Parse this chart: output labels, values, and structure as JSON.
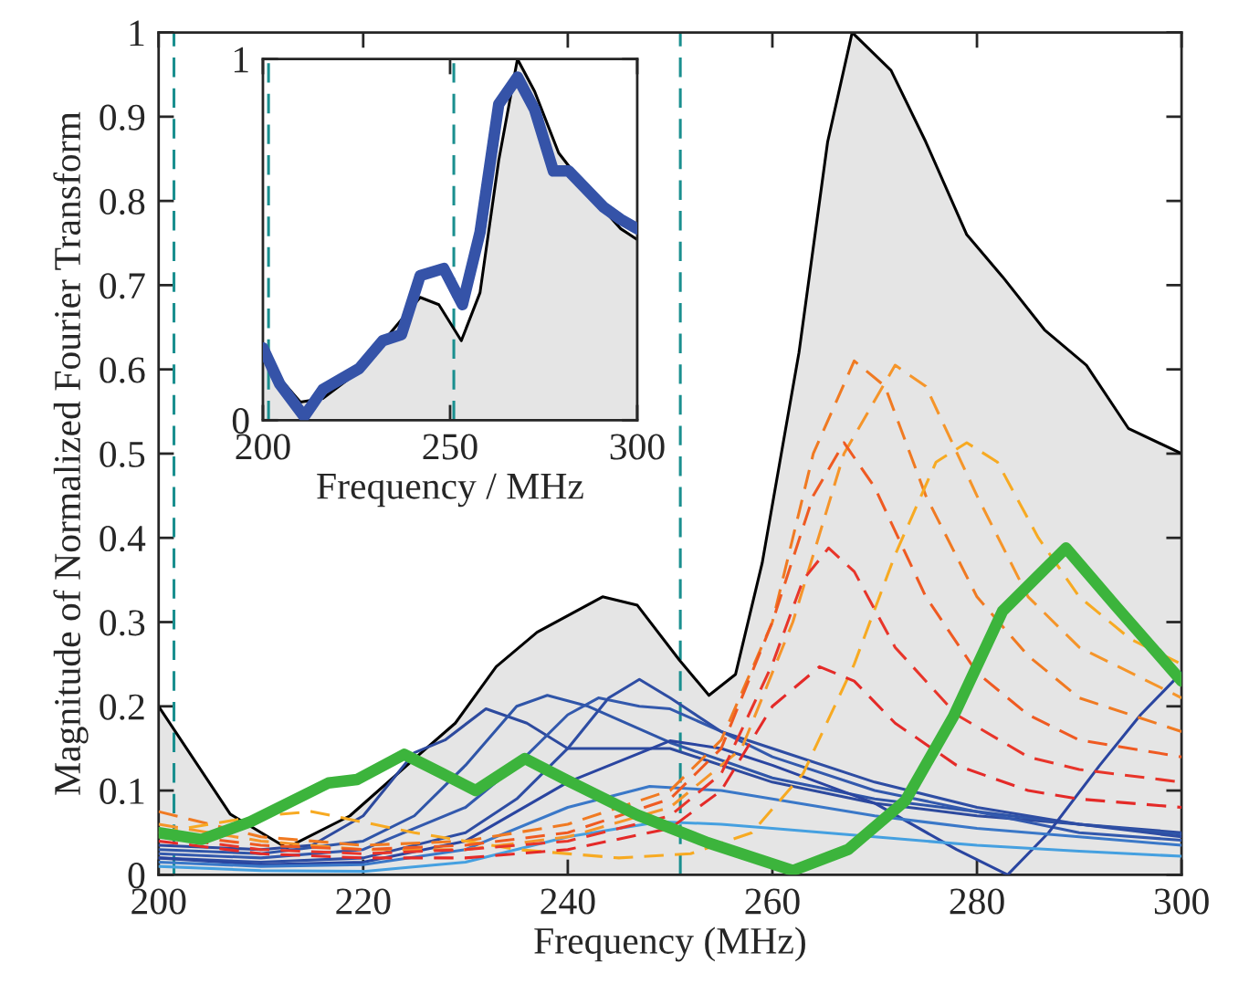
{
  "chart_data": [
    {
      "type": "line",
      "xlabel": "Frequency (MHz)",
      "ylabel": "Magnitude of Normalized Fourier Transform",
      "xlim": [
        200,
        300
      ],
      "ylim": [
        0,
        1
      ],
      "xticks": [
        200,
        220,
        240,
        260,
        280,
        300
      ],
      "yticks": [
        0,
        0.1,
        0.2,
        0.3,
        0.4,
        0.5,
        0.6,
        0.7,
        0.8,
        0.9,
        1
      ],
      "grid": false,
      "legend": false,
      "ref_lines": [
        {
          "axis": "x",
          "value": 201.5,
          "color": "#1a8f8f",
          "line_style": "dashed"
        },
        {
          "axis": "x",
          "value": 251,
          "color": "#1a8f8f",
          "line_style": "dashed"
        }
      ],
      "series": [
        {
          "type": "area",
          "color": "#000000",
          "line_style": "solid",
          "x": [
            200,
            207,
            212.5,
            218.7,
            225.5,
            229,
            233,
            237,
            243.4,
            246.8,
            250.9,
            253.8,
            256.4,
            259,
            262.6,
            265.4,
            267.8,
            271.6,
            275,
            279,
            282.5,
            286.6,
            290.7,
            294.8,
            300
          ],
          "values": [
            0.2,
            0.072,
            0.032,
            0.07,
            0.143,
            0.18,
            0.247,
            0.288,
            0.33,
            0.32,
            0.255,
            0.213,
            0.238,
            0.37,
            0.62,
            0.87,
            1.0,
            0.955,
            0.87,
            0.76,
            0.71,
            0.647,
            0.605,
            0.53,
            0.5
          ]
        },
        {
          "color": "#2d4a9e",
          "line_style": "solid",
          "x": [
            200,
            210,
            215,
            220,
            225,
            228,
            232,
            236,
            240,
            250,
            260,
            270,
            280,
            290,
            300
          ],
          "values": [
            0.035,
            0.03,
            0.035,
            0.07,
            0.145,
            0.16,
            0.197,
            0.18,
            0.15,
            0.15,
            0.11,
            0.085,
            0.07,
            0.06,
            0.05
          ]
        },
        {
          "color": "#2f55a8",
          "line_style": "solid",
          "x": [
            200,
            210,
            220,
            225,
            230,
            235,
            238,
            242,
            250,
            260,
            270,
            280,
            290,
            300
          ],
          "values": [
            0.03,
            0.025,
            0.04,
            0.07,
            0.13,
            0.2,
            0.213,
            0.2,
            0.157,
            0.115,
            0.09,
            0.075,
            0.06,
            0.048
          ]
        },
        {
          "color": "#3359ad",
          "line_style": "solid",
          "x": [
            200,
            210,
            220,
            230,
            235,
            240,
            243,
            247,
            250,
            255,
            260,
            270,
            280,
            290,
            300
          ],
          "values": [
            0.025,
            0.02,
            0.03,
            0.08,
            0.13,
            0.19,
            0.21,
            0.2,
            0.197,
            0.17,
            0.14,
            0.1,
            0.075,
            0.05,
            0.041
          ]
        },
        {
          "color": "#2e4da3",
          "line_style": "solid",
          "x": [
            200,
            210,
            220,
            230,
            235,
            240,
            244,
            247,
            250,
            255,
            260,
            270,
            280,
            290,
            300
          ],
          "values": [
            0.02,
            0.015,
            0.02,
            0.05,
            0.09,
            0.15,
            0.21,
            0.232,
            0.21,
            0.17,
            0.15,
            0.11,
            0.08,
            0.06,
            0.045
          ]
        },
        {
          "color": "#2a45a0",
          "line_style": "solid",
          "x": [
            200,
            210,
            220,
            230,
            240,
            250,
            255,
            260,
            270,
            278,
            283,
            287,
            292,
            296,
            300
          ],
          "values": [
            0.02,
            0.012,
            0.015,
            0.04,
            0.11,
            0.159,
            0.15,
            0.13,
            0.085,
            0.03,
            0.0,
            0.05,
            0.13,
            0.19,
            0.24
          ]
        },
        {
          "color": "#3a78c8",
          "line_style": "solid",
          "x": [
            200,
            210,
            220,
            230,
            240,
            248,
            255,
            260,
            270,
            280,
            290,
            300
          ],
          "values": [
            0.015,
            0.01,
            0.012,
            0.03,
            0.08,
            0.105,
            0.1,
            0.09,
            0.07,
            0.055,
            0.045,
            0.035
          ]
        },
        {
          "color": "#45a0e0",
          "line_style": "solid",
          "x": [
            200,
            210,
            220,
            230,
            240,
            249,
            255,
            260,
            270,
            280,
            290,
            300
          ],
          "values": [
            0.01,
            0.005,
            0.004,
            0.015,
            0.045,
            0.063,
            0.06,
            0.055,
            0.045,
            0.035,
            0.028,
            0.022
          ]
        },
        {
          "color": "#f07a22",
          "line_style": "dashed",
          "x": [
            200,
            210,
            220,
            230,
            240,
            250,
            255,
            260,
            264,
            268,
            271,
            275,
            280,
            285,
            290,
            295,
            300
          ],
          "values": [
            0.075,
            0.045,
            0.035,
            0.04,
            0.06,
            0.1,
            0.16,
            0.3,
            0.5,
            0.61,
            0.58,
            0.45,
            0.33,
            0.26,
            0.21,
            0.19,
            0.17
          ]
        },
        {
          "color": "#f5952a",
          "line_style": "dashed",
          "x": [
            200,
            210,
            220,
            230,
            240,
            250,
            257,
            262,
            267,
            272,
            275,
            280,
            285,
            290,
            300
          ],
          "values": [
            0.06,
            0.04,
            0.03,
            0.03,
            0.045,
            0.08,
            0.15,
            0.3,
            0.5,
            0.605,
            0.58,
            0.45,
            0.33,
            0.27,
            0.21
          ]
        },
        {
          "color": "#f7aa22",
          "line_style": "dashed",
          "x": [
            200,
            210,
            215,
            225,
            235,
            245,
            252,
            258,
            263,
            268,
            272,
            276,
            279,
            282,
            286,
            290,
            295,
            300
          ],
          "values": [
            0.05,
            0.07,
            0.075,
            0.05,
            0.03,
            0.02,
            0.025,
            0.05,
            0.12,
            0.25,
            0.38,
            0.49,
            0.513,
            0.49,
            0.4,
            0.33,
            0.28,
            0.25
          ]
        },
        {
          "color": "#ef5a22",
          "line_style": "dashed",
          "x": [
            200,
            210,
            220,
            230,
            240,
            250,
            255,
            260,
            264,
            267,
            270,
            275,
            280,
            285,
            290,
            300
          ],
          "values": [
            0.05,
            0.035,
            0.03,
            0.035,
            0.05,
            0.09,
            0.15,
            0.3,
            0.45,
            0.513,
            0.46,
            0.33,
            0.24,
            0.19,
            0.16,
            0.14
          ]
        },
        {
          "color": "#e8352a",
          "line_style": "dashed",
          "x": [
            200,
            210,
            220,
            230,
            240,
            250,
            255,
            260,
            263,
            265.5,
            268,
            272,
            278,
            285,
            290,
            300
          ],
          "values": [
            0.045,
            0.03,
            0.025,
            0.03,
            0.04,
            0.07,
            0.12,
            0.25,
            0.35,
            0.388,
            0.36,
            0.27,
            0.19,
            0.14,
            0.125,
            0.11
          ]
        },
        {
          "color": "#e42a28",
          "line_style": "dashed",
          "x": [
            200,
            210,
            220,
            230,
            240,
            250,
            255,
            260,
            264.6,
            268,
            272,
            278,
            285,
            290,
            300
          ],
          "values": [
            0.04,
            0.025,
            0.02,
            0.02,
            0.03,
            0.055,
            0.1,
            0.2,
            0.247,
            0.23,
            0.18,
            0.13,
            0.1,
            0.09,
            0.08
          ]
        },
        {
          "color": "#3cb43c",
          "line_style": "solid",
          "x": [
            200,
            204.2,
            209,
            216.6,
            219.4,
            224,
            227.6,
            231,
            235.8,
            239.8,
            246.8,
            253.7,
            262,
            267.4,
            273,
            277.7,
            282.5,
            288.7,
            293.5,
            300
          ],
          "values": [
            0.05,
            0.042,
            0.063,
            0.109,
            0.113,
            0.143,
            0.121,
            0.1,
            0.138,
            0.113,
            0.071,
            0.038,
            0.005,
            0.03,
            0.088,
            0.188,
            0.313,
            0.388,
            0.32,
            0.23
          ]
        }
      ]
    },
    {
      "type": "line",
      "xlabel": "Frequency / MHz",
      "xlim": [
        200,
        300
      ],
      "ylim": [
        0,
        1
      ],
      "xticks": [
        200,
        250,
        300
      ],
      "yticks": [
        0,
        1
      ],
      "grid": false,
      "legend": false,
      "ref_lines": [
        {
          "axis": "x",
          "value": 201.5,
          "color": "#1a8f8f",
          "line_style": "dashed"
        },
        {
          "axis": "x",
          "value": 251,
          "color": "#1a8f8f",
          "line_style": "dashed"
        }
      ],
      "series": [
        {
          "type": "area",
          "color": "#000000",
          "line_style": "solid",
          "x": [
            200,
            210,
            216,
            225.7,
            233.7,
            242,
            247,
            253,
            258,
            263,
            268,
            272.6,
            279,
            289,
            295.6,
            300
          ],
          "values": [
            0.17,
            0.05,
            0.06,
            0.136,
            0.237,
            0.34,
            0.32,
            0.22,
            0.353,
            0.72,
            1.0,
            0.91,
            0.74,
            0.606,
            0.53,
            0.5
          ]
        },
        {
          "color": "#3553a8",
          "line_style": "solid",
          "x": [
            200,
            204.5,
            211,
            216,
            225.7,
            232,
            237,
            242,
            248.3,
            253.3,
            258,
            263,
            268,
            272.6,
            277.6,
            281.7,
            291,
            295.6,
            300
          ],
          "values": [
            0.2,
            0.1,
            0.01,
            0.085,
            0.143,
            0.22,
            0.237,
            0.4,
            0.42,
            0.32,
            0.52,
            0.875,
            0.95,
            0.86,
            0.69,
            0.69,
            0.59,
            0.556,
            0.53
          ]
        }
      ]
    }
  ]
}
